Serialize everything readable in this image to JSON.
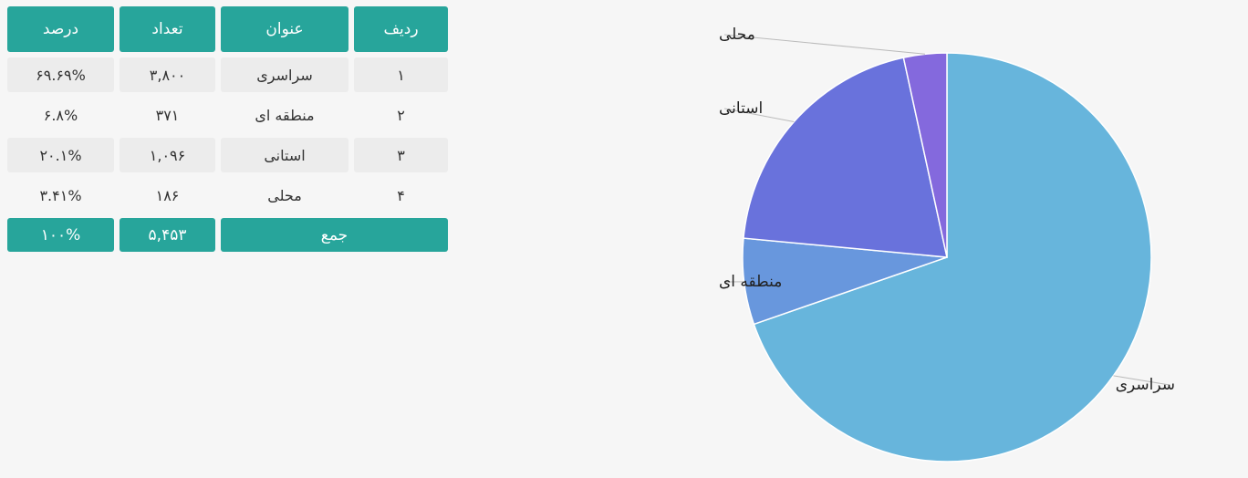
{
  "table": {
    "headers": {
      "row": "ردیف",
      "title": "عنوان",
      "count": "تعداد",
      "percent": "درصد"
    },
    "rows": [
      {
        "row": "۱",
        "title": "سراسری",
        "count": "۳,۸۰۰",
        "percent": "۶۹.۶۹%"
      },
      {
        "row": "۲",
        "title": "منطقه ای",
        "count": "۳۷۱",
        "percent": "۶.۸%"
      },
      {
        "row": "۳",
        "title": "استانی",
        "count": "۱,۰۹۶",
        "percent": "۲۰.۱%"
      },
      {
        "row": "۴",
        "title": "محلی",
        "count": "۱۸۶",
        "percent": "۳.۴۱%"
      }
    ],
    "footer": {
      "label": "جمع",
      "count": "۵,۴۵۳",
      "percent": "۱۰۰%"
    }
  },
  "colors": {
    "header_bg": "#27a59b",
    "slice_sarasari": "#67b5dc",
    "slice_mantaghe": "#6897dd",
    "slice_ostani": "#6972dc",
    "slice_mahali": "#8469dd"
  },
  "chart_data": {
    "type": "pie",
    "categories": [
      "سراسری",
      "منطقه ای",
      "استانی",
      "محلی"
    ],
    "values": [
      3800,
      371,
      1096,
      186
    ],
    "legend": "none"
  }
}
